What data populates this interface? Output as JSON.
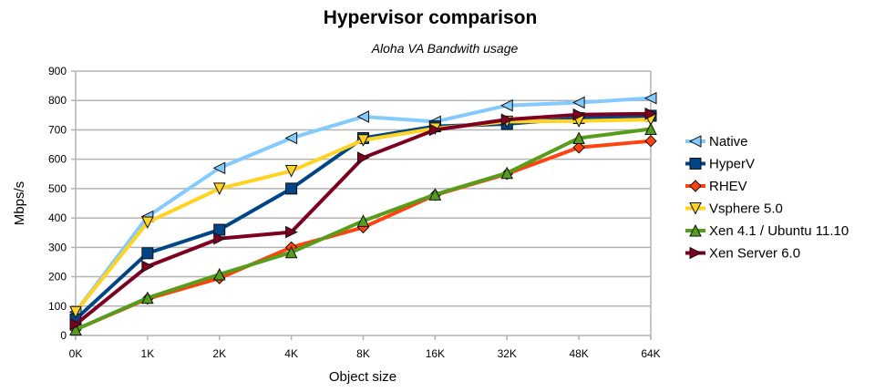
{
  "chart_data": {
    "type": "line",
    "title": "Hypervisor comparison",
    "subtitle": "Aloha VA Bandwith usage",
    "xlabel": "Object size",
    "ylabel": "Mbps/s",
    "categories": [
      "0K",
      "1K",
      "2K",
      "4K",
      "8K",
      "16K",
      "32K",
      "48K",
      "64K"
    ],
    "ylim": [
      0,
      900
    ],
    "yticks": [
      0,
      100,
      200,
      300,
      400,
      500,
      600,
      700,
      800,
      900
    ],
    "grid": true,
    "legend_placement": "right",
    "series": [
      {
        "name": "Native",
        "color": "#83caff",
        "marker": "triangle-left",
        "values": [
          80,
          405,
          570,
          672,
          745,
          728,
          783,
          793,
          808
        ]
      },
      {
        "name": "HyperV",
        "color": "#004586",
        "marker": "square",
        "values": [
          55,
          280,
          360,
          500,
          672,
          712,
          720,
          740,
          748
        ]
      },
      {
        "name": "RHEV",
        "color": "#ff420e",
        "marker": "diamond",
        "values": [
          20,
          125,
          195,
          300,
          368,
          478,
          550,
          640,
          662
        ]
      },
      {
        "name": "Vsphere 5.0",
        "color": "#ffd320",
        "marker": "triangle-down",
        "values": [
          80,
          385,
          500,
          560,
          665,
          705,
          728,
          730,
          735
        ]
      },
      {
        "name": "Xen 4.1 / Ubuntu 11.10",
        "color": "#579d1c",
        "marker": "triangle-up",
        "values": [
          20,
          128,
          208,
          283,
          390,
          480,
          553,
          672,
          703
        ]
      },
      {
        "name": "Xen Server 6.0",
        "color": "#7e0021",
        "marker": "triangle-right",
        "values": [
          38,
          235,
          330,
          352,
          605,
          700,
          735,
          752,
          755
        ]
      }
    ]
  }
}
